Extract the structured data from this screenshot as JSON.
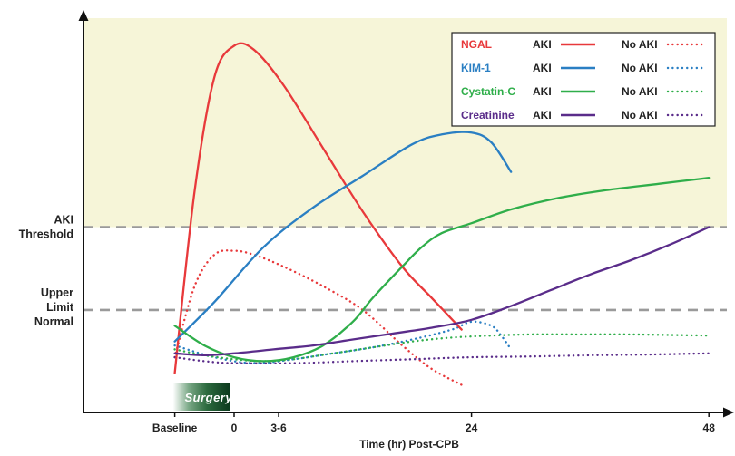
{
  "chart_data": {
    "type": "line",
    "xlabel": "Time (hr) Post-CPB",
    "x_ticks": [
      {
        "x": -6,
        "label": "Baseline"
      },
      {
        "x": 0,
        "label": "0"
      },
      {
        "x": 4.5,
        "label": "3-6"
      },
      {
        "x": 24,
        "label": "24"
      },
      {
        "x": 48,
        "label": "48"
      }
    ],
    "xlim": [
      -10.5,
      49
    ],
    "ylim": [
      0,
      100
    ],
    "y_reference_lines": [
      {
        "name": "aki_threshold",
        "y": 47,
        "label": [
          "AKI",
          "Threshold"
        ]
      },
      {
        "name": "upper_limit_normal",
        "y": 26,
        "label": [
          "Upper",
          "Limit",
          "Normal"
        ]
      }
    ],
    "shaded_region": {
      "from": 47,
      "to": 100,
      "color": "#f6f5d8"
    },
    "annotation": {
      "label": "Surgery",
      "x_from": -6,
      "x_to": 0
    },
    "colors": {
      "NGAL": "#e8393b",
      "KIM-1": "#2a7fc3",
      "Cystatin-C": "#2fae4a",
      "Creatinine": "#5a2c8a"
    },
    "legend": {
      "position": "top-right",
      "aki_label": "AKI",
      "no_aki_label": "No AKI",
      "entries": [
        "NGAL",
        "KIM-1",
        "Cystatin-C",
        "Creatinine"
      ]
    },
    "series": [
      {
        "marker": "NGAL",
        "group": "AKI",
        "style": "solid",
        "x": [
          -6,
          -4,
          -2,
          0,
          2,
          5,
          9,
          13,
          17,
          20,
          23
        ],
        "y": [
          10,
          56,
          85,
          93,
          92,
          83,
          67,
          51,
          37,
          29,
          21
        ]
      },
      {
        "marker": "KIM-1",
        "group": "AKI",
        "style": "solid",
        "x": [
          -6,
          -2,
          3,
          8,
          13,
          18,
          21,
          24,
          26,
          28
        ],
        "y": [
          18,
          28,
          42,
          52,
          60,
          68,
          70.5,
          71,
          68.5,
          61
        ]
      },
      {
        "marker": "Cystatin-C",
        "group": "AKI",
        "style": "solid",
        "x": [
          -6,
          -3,
          0,
          3,
          6,
          9,
          12,
          14,
          17,
          19,
          21,
          24,
          28,
          33,
          38,
          43,
          48
        ],
        "y": [
          22,
          17,
          14,
          13,
          14,
          17,
          23,
          29,
          37,
          42,
          45.5,
          48,
          51.5,
          54.5,
          56.5,
          58,
          59.5
        ]
      },
      {
        "marker": "Creatinine",
        "group": "AKI",
        "style": "solid",
        "x": [
          -6,
          -3,
          0,
          4,
          8,
          12,
          16,
          20,
          24,
          28,
          32,
          36,
          40,
          44,
          48
        ],
        "y": [
          15,
          14.5,
          15,
          16,
          17,
          18.5,
          20,
          21.5,
          23.5,
          27,
          31,
          35,
          38.5,
          42.5,
          47
        ]
      },
      {
        "marker": "NGAL",
        "group": "No AKI",
        "style": "dotted",
        "x": [
          -6,
          -4,
          -2,
          0,
          2,
          5,
          9,
          13,
          17,
          20,
          23
        ],
        "y": [
          14,
          32,
          40,
          41,
          40,
          37,
          32,
          26,
          17,
          11,
          7
        ]
      },
      {
        "marker": "KIM-1",
        "group": "No AKI",
        "style": "dotted",
        "x": [
          -6,
          -2,
          2,
          6,
          10,
          14,
          18,
          22,
          24,
          26,
          27,
          28
        ],
        "y": [
          17,
          14,
          12.5,
          13.5,
          15,
          16.5,
          18.5,
          21,
          23,
          22,
          19.5,
          16
        ]
      },
      {
        "marker": "Cystatin-C",
        "group": "No AKI",
        "style": "dotted",
        "x": [
          -6,
          -3,
          0,
          3,
          6,
          10,
          14,
          18,
          22,
          26,
          30,
          35,
          40,
          48
        ],
        "y": [
          16,
          14.5,
          13.5,
          13,
          13.5,
          15,
          16.5,
          18,
          19,
          19.5,
          19.8,
          19.8,
          19.8,
          19.5
        ]
      },
      {
        "marker": "Creatinine",
        "group": "No AKI",
        "style": "dotted",
        "x": [
          -6,
          -3,
          0,
          6,
          12,
          18,
          24,
          30,
          36,
          42,
          48
        ],
        "y": [
          14,
          13,
          12.5,
          12.5,
          13,
          13.5,
          14,
          14.2,
          14.5,
          14.7,
          15
        ]
      }
    ]
  }
}
